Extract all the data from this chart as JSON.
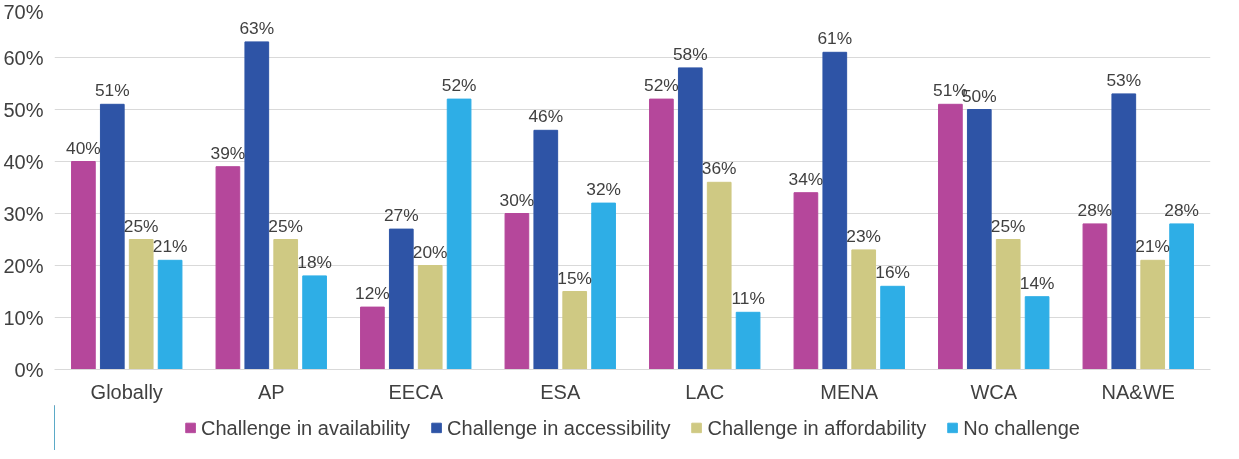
{
  "chart_data": {
    "type": "bar",
    "categories": [
      "Globally",
      "AP",
      "EECA",
      "ESA",
      "LAC",
      "MENA",
      "WCA",
      "NA&WE"
    ],
    "series": [
      {
        "name": "Challenge in availability",
        "color": "#b5479b",
        "values": [
          40,
          39,
          12,
          30,
          52,
          34,
          51,
          28
        ],
        "value_labels": [
          "40%",
          "39%",
          "12%",
          "30%",
          "52%",
          "34%",
          "51%",
          "28%"
        ]
      },
      {
        "name": "Challenge in accessibility",
        "color": "#2e54a6",
        "values": [
          51,
          63,
          27,
          46,
          58,
          61,
          50,
          53
        ],
        "value_labels": [
          "51%",
          "63%",
          "27%",
          "46%",
          "58%",
          "61%",
          "50%",
          "53%"
        ]
      },
      {
        "name": "Challenge in affordability",
        "color": "#cfc983",
        "values": [
          25,
          25,
          20,
          15,
          36,
          23,
          25,
          21
        ],
        "value_labels": [
          "25%",
          "25%",
          "20%",
          "15%",
          "36%",
          "23%",
          "25%",
          "21%"
        ]
      },
      {
        "name": "No challenge",
        "color": "#2eaee6",
        "values": [
          21,
          18,
          52,
          32,
          11,
          16,
          14,
          28
        ],
        "value_labels": [
          "21%",
          "18%",
          "52%",
          "32%",
          "11%",
          "16%",
          "14%",
          "28%"
        ]
      }
    ],
    "ylim": [
      0,
      70
    ],
    "yticks": [
      {
        "value": 0,
        "label": "0%"
      },
      {
        "value": 10,
        "label": "10%"
      },
      {
        "value": 20,
        "label": "20%"
      },
      {
        "value": 30,
        "label": "30%"
      },
      {
        "value": 40,
        "label": "40%"
      },
      {
        "value": 50,
        "label": "50%"
      },
      {
        "value": 60,
        "label": "60%"
      },
      {
        "value": 70,
        "label": "70%"
      }
    ],
    "grid": "y",
    "legend": "bottom"
  }
}
